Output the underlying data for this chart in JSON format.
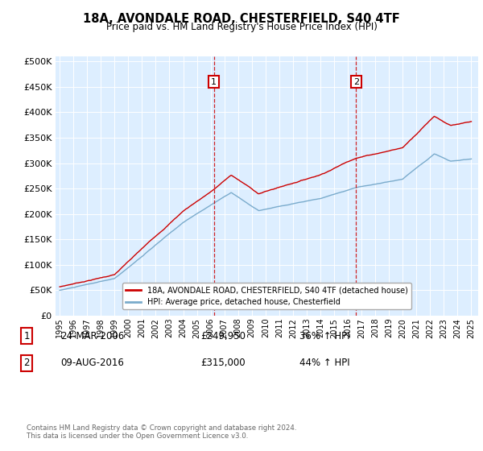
{
  "title": "18A, AVONDALE ROAD, CHESTERFIELD, S40 4TF",
  "subtitle": "Price paid vs. HM Land Registry's House Price Index (HPI)",
  "legend_line1": "18A, AVONDALE ROAD, CHESTERFIELD, S40 4TF (detached house)",
  "legend_line2": "HPI: Average price, detached house, Chesterfield",
  "annotation1_label": "1",
  "annotation1_date": "24-MAR-2006",
  "annotation1_price": "£249,950",
  "annotation1_hpi": "36% ↑ HPI",
  "annotation2_label": "2",
  "annotation2_date": "09-AUG-2016",
  "annotation2_price": "£315,000",
  "annotation2_hpi": "44% ↑ HPI",
  "footer": "Contains HM Land Registry data © Crown copyright and database right 2024.\nThis data is licensed under the Open Government Licence v3.0.",
  "red_color": "#cc0000",
  "blue_color": "#7aabcc",
  "bg_color": "#ddeeff",
  "grid_color": "#ffffff",
  "marker1_x": 2006.23,
  "marker2_x": 2016.61,
  "xmin": 1994.7,
  "xmax": 2025.5,
  "ylim_min": 0,
  "ylim_max": 510000,
  "ytick_step": 50000
}
